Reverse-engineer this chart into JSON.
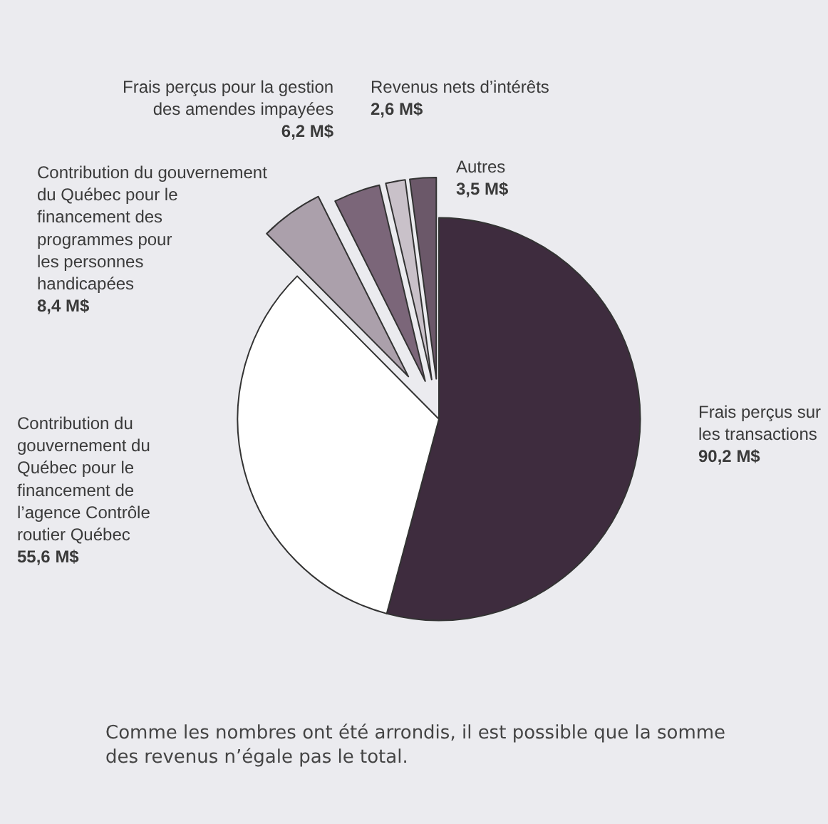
{
  "chart_data": {
    "type": "pie",
    "categories": [
      "Frais perçus sur les transactions",
      "Contribution du gouvernement du Québec pour le financement de l’agence Contrôle routier Québec",
      "Contribution du gouvernement du Québec pour le financement des programmes pour les personnes handicapées",
      "Frais perçus pour la gestion des amendes impayées",
      "Revenus nets d’intérêts",
      "Autres"
    ],
    "values": [
      90.2,
      55.6,
      8.4,
      6.2,
      2.6,
      3.5
    ],
    "value_labels": [
      "90,2 M$",
      "55,6 M$",
      "8,4 M$",
      "6,2 M$",
      "2,6 M$",
      "3,5 M$"
    ],
    "colors": [
      "#3e2c3e",
      "#ffffff",
      "#aba0ab",
      "#7b6679",
      "#c9c1c9",
      "#6b5869"
    ],
    "annotations": [
      "Comme les nombres ont été arrondis, il est possible que la somme des revenus n’égale pas le total."
    ]
  }
}
